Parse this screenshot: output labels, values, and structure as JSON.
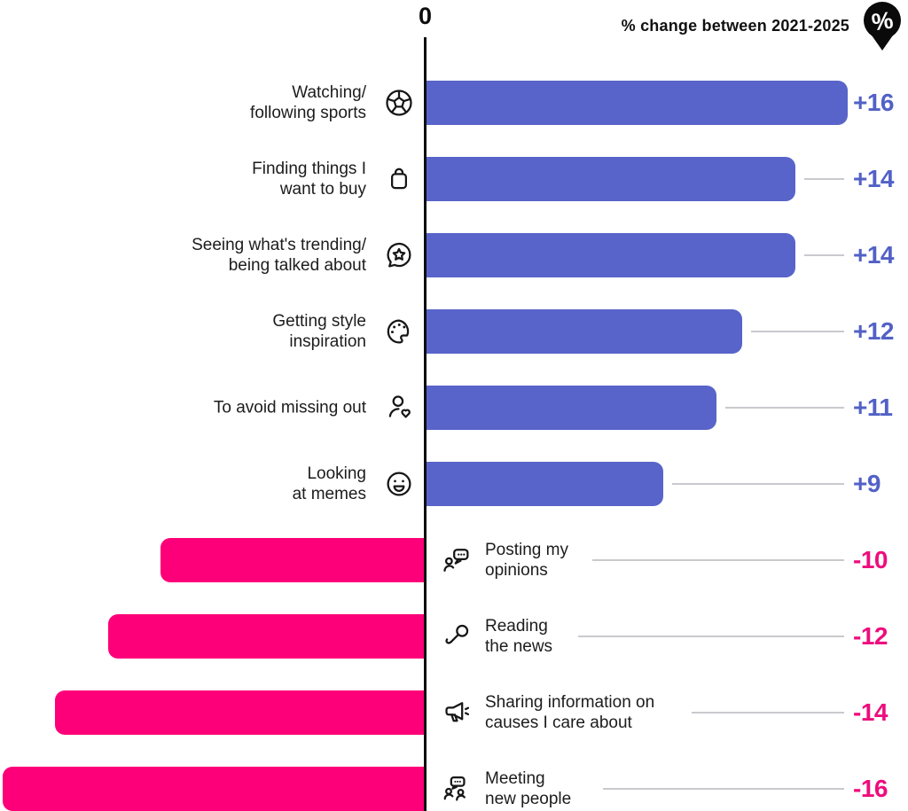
{
  "header": {
    "zero_label": "0",
    "title": "% change between 2021-2025",
    "badge_text": "%"
  },
  "chart_data": {
    "type": "bar",
    "orientation": "horizontal_diverging",
    "title": "% change between 2021-2025",
    "unit": "percentage points",
    "axis": {
      "zero_label": "0",
      "range": [
        -16,
        16
      ],
      "grid": false
    },
    "legend": "none",
    "categories": [
      "Watching/following sports",
      "Finding things I want to buy",
      "Seeing what's trending/being talked about",
      "Getting style inspiration",
      "To avoid missing out",
      "Looking at memes",
      "Posting my opinions",
      "Reading the news",
      "Sharing information on causes I care about",
      "Meeting new people"
    ],
    "values": [
      16,
      14,
      14,
      12,
      11,
      9,
      -10,
      -12,
      -14,
      -16
    ]
  },
  "rows": [
    {
      "label_lines": [
        "Watching/",
        "following sports"
      ],
      "icon": "soccer-ball-icon",
      "value": 16,
      "value_label": "+16"
    },
    {
      "label_lines": [
        "Finding things I",
        "want to buy"
      ],
      "icon": "shopping-bag-icon",
      "value": 14,
      "value_label": "+14"
    },
    {
      "label_lines": [
        "Seeing what's trending/",
        "being talked about"
      ],
      "icon": "chat-star-icon",
      "value": 14,
      "value_label": "+14"
    },
    {
      "label_lines": [
        "Getting style",
        "inspiration"
      ],
      "icon": "palette-icon",
      "value": 12,
      "value_label": "+12"
    },
    {
      "label_lines": [
        "To avoid missing out"
      ],
      "icon": "person-heart-icon",
      "value": 11,
      "value_label": "+11"
    },
    {
      "label_lines": [
        "Looking",
        "at memes"
      ],
      "icon": "smiley-icon",
      "value": 9,
      "value_label": "+9"
    },
    {
      "label_lines": [
        "Posting my",
        "opinions"
      ],
      "icon": "person-chat-icon",
      "value": -10,
      "value_label": "-10"
    },
    {
      "label_lines": [
        "Reading",
        "the news"
      ],
      "icon": "microphone-icon",
      "value": -12,
      "value_label": "-12"
    },
    {
      "label_lines": [
        "Sharing information on",
        "causes I care about"
      ],
      "icon": "megaphone-icon",
      "value": -14,
      "value_label": "-14"
    },
    {
      "label_lines": [
        "Meeting",
        "new people"
      ],
      "icon": "people-chat-icon",
      "value": -16,
      "value_label": "-16"
    }
  ],
  "colors": {
    "positive_bar": "#5864c9",
    "positive_value_text": "#5261c6",
    "negative_bar": "#fd0079",
    "negative_value_text": "#ee0d7d",
    "axis": "#0d0d0d",
    "leader_line": "#c9c9ce",
    "label_text": "#1c1c1c",
    "badge_bg": "#0a0a0a",
    "badge_fg": "#ffffff"
  }
}
